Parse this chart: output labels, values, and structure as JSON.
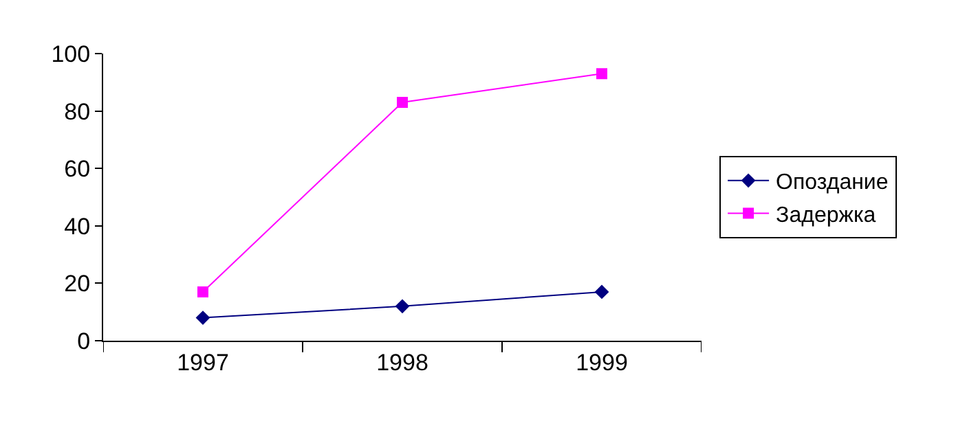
{
  "chart_data": {
    "type": "line",
    "categories": [
      "1997",
      "1998",
      "1999"
    ],
    "series": [
      {
        "name": "Опоздание",
        "color": "#000080",
        "marker": "diamond",
        "values": [
          8,
          12,
          17
        ]
      },
      {
        "name": "Задержка",
        "color": "#ff00ff",
        "marker": "square",
        "values": [
          17,
          83,
          93
        ]
      }
    ],
    "ylim": [
      0,
      100
    ],
    "yticks": [
      0,
      20,
      40,
      60,
      80,
      100
    ],
    "grid": false,
    "legend": "right",
    "line_style": "solid"
  }
}
